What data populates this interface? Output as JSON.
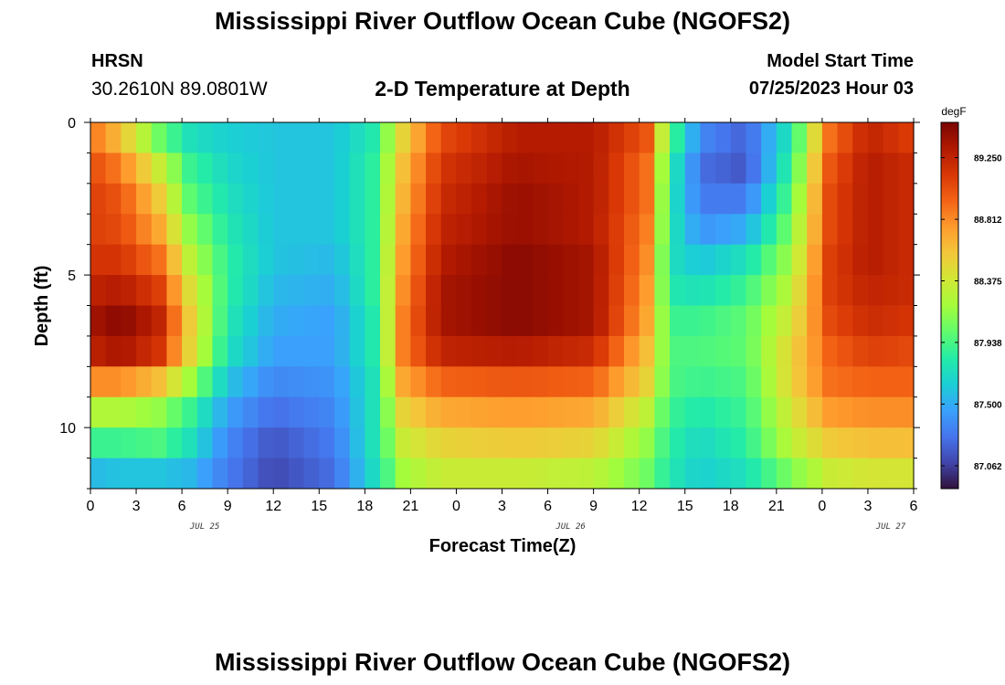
{
  "header": {
    "title": "Mississippi River Outflow Ocean Cube (NGOFS2)",
    "station": "HRSN",
    "coordinates": "30.2610N  89.0801W",
    "subtitle": "2-D Temperature at Depth",
    "model_start_label": "Model Start Time",
    "model_start_value": "07/25/2023 Hour 03"
  },
  "footer": {
    "title": "Mississippi River Outflow Ocean Cube (NGOFS2)"
  },
  "chart_data": {
    "type": "heatmap",
    "title": "2-D Temperature at Depth",
    "xlabel": "Forecast Time(Z)",
    "ylabel": "Depth (ft)",
    "x_tick_labels": [
      "0",
      "3",
      "6",
      "9",
      "12",
      "15",
      "18",
      "21",
      "0",
      "3",
      "6",
      "9",
      "12",
      "15",
      "18",
      "21",
      "0",
      "3",
      "6"
    ],
    "date_labels": [
      {
        "label": "JUL 25",
        "at_tick": 2.5
      },
      {
        "label": "JUL 26",
        "at_tick": 10.5
      },
      {
        "label": "JUL 27",
        "at_tick": 17.5
      }
    ],
    "x_range_hours": [
      0,
      54
    ],
    "y_range_ft": [
      0,
      12
    ],
    "y_ticks": [
      0,
      5,
      10
    ],
    "y_reversed": true,
    "colorbar": {
      "unit": "degF",
      "range": [
        86.9,
        89.5
      ],
      "tick_values": [
        87.062,
        87.5,
        87.938,
        88.375,
        88.812,
        89.25
      ],
      "tick_labels": [
        "87.062",
        "87.500",
        "87.938",
        "88.375",
        "88.812",
        "89.250"
      ],
      "colors": [
        "#30123b",
        "#4145ab",
        "#4675ed",
        "#39a2fc",
        "#1bcfd4",
        "#24eca6",
        "#61fc6c",
        "#a4fc3b",
        "#d1e835",
        "#f3c63a",
        "#fe9b2d",
        "#f36315",
        "#d93806",
        "#b11901",
        "#7a0402"
      ]
    },
    "depth_levels_ft": [
      0.5,
      1.5,
      2.5,
      3.5,
      4.5,
      5.5,
      6.5,
      7.5,
      8.5,
      9.5,
      10.5,
      11.5
    ],
    "profile_times_hours": [
      0,
      2,
      4.5,
      6.5,
      9,
      12,
      16,
      18.5,
      20.5,
      23,
      28,
      33,
      36.5,
      38,
      40,
      43,
      46,
      48.5,
      51,
      54
    ],
    "values_degF": [
      [
        88.9,
        88.6,
        88.05,
        87.75,
        87.65,
        87.6,
        87.6,
        87.8,
        88.5,
        89.05,
        89.3,
        89.3,
        89.0,
        88.0,
        87.35,
        87.2,
        87.8,
        88.9,
        89.25,
        89.1
      ],
      [
        89.05,
        88.85,
        88.35,
        87.9,
        87.7,
        87.6,
        87.6,
        87.85,
        88.6,
        89.15,
        89.35,
        89.3,
        88.9,
        87.85,
        87.25,
        87.15,
        87.9,
        89.0,
        89.3,
        89.2
      ],
      [
        89.1,
        89.0,
        88.55,
        88.0,
        87.75,
        87.6,
        87.6,
        87.85,
        88.65,
        89.2,
        89.4,
        89.3,
        88.9,
        87.8,
        87.3,
        87.3,
        88.0,
        89.05,
        89.3,
        89.2
      ],
      [
        89.1,
        89.05,
        88.7,
        88.15,
        87.8,
        87.6,
        87.6,
        87.85,
        88.7,
        89.25,
        89.4,
        89.3,
        88.85,
        87.8,
        87.4,
        87.5,
        88.1,
        89.05,
        89.3,
        89.2
      ],
      [
        89.15,
        89.15,
        88.9,
        88.3,
        87.85,
        87.6,
        87.55,
        87.85,
        88.75,
        89.3,
        89.45,
        89.35,
        88.8,
        87.75,
        87.6,
        87.75,
        88.2,
        89.1,
        89.3,
        89.2
      ],
      [
        89.25,
        89.3,
        89.1,
        88.45,
        87.85,
        87.55,
        87.5,
        87.85,
        88.8,
        89.35,
        89.45,
        89.35,
        88.75,
        87.8,
        87.75,
        87.9,
        88.3,
        89.1,
        89.25,
        89.2
      ],
      [
        89.35,
        89.45,
        89.25,
        88.55,
        87.8,
        87.5,
        87.45,
        87.8,
        88.85,
        89.35,
        89.45,
        89.35,
        88.7,
        87.9,
        87.9,
        88.0,
        88.4,
        89.05,
        89.2,
        89.15
      ],
      [
        89.25,
        89.35,
        89.15,
        88.5,
        87.75,
        87.45,
        87.45,
        87.8,
        88.85,
        89.25,
        89.3,
        89.2,
        88.6,
        87.95,
        87.95,
        88.0,
        88.5,
        88.95,
        89.1,
        89.05
      ],
      [
        88.8,
        88.8,
        88.6,
        88.2,
        87.6,
        87.35,
        87.4,
        87.75,
        88.7,
        88.95,
        89.0,
        88.95,
        88.5,
        87.95,
        87.9,
        87.95,
        88.5,
        88.9,
        88.95,
        88.95
      ],
      [
        88.25,
        88.25,
        88.15,
        87.9,
        87.45,
        87.25,
        87.35,
        87.75,
        88.5,
        88.7,
        88.75,
        88.7,
        88.3,
        87.9,
        87.8,
        87.9,
        88.4,
        88.75,
        88.8,
        88.8
      ],
      [
        87.9,
        87.9,
        87.95,
        87.75,
        87.35,
        87.15,
        87.3,
        87.75,
        88.35,
        88.5,
        88.55,
        88.5,
        88.15,
        87.85,
        87.7,
        87.85,
        88.3,
        88.55,
        88.6,
        88.6
      ],
      [
        87.55,
        87.6,
        87.6,
        87.55,
        87.3,
        87.1,
        87.25,
        87.7,
        88.2,
        88.35,
        88.35,
        88.3,
        88.05,
        87.8,
        87.65,
        87.75,
        88.1,
        88.35,
        88.4,
        88.4
      ]
    ],
    "last_row_visible_fraction": 0.6,
    "grid": false,
    "legend": "colorbar-right"
  }
}
